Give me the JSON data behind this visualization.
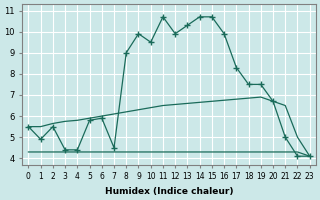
{
  "xlabel": "Humidex (Indice chaleur)",
  "bg_color": "#cce8e8",
  "line_color": "#1a6b5a",
  "grid_color": "#ffffff",
  "x_ticks": [
    0,
    1,
    2,
    3,
    4,
    5,
    6,
    7,
    8,
    9,
    10,
    11,
    12,
    13,
    14,
    15,
    16,
    17,
    18,
    19,
    20,
    21,
    22,
    23
  ],
  "y_ticks": [
    4,
    5,
    6,
    7,
    8,
    9,
    10,
    11
  ],
  "ylim": [
    3.7,
    11.3
  ],
  "xlim": [
    -0.5,
    23.5
  ],
  "curve1_x": [
    0,
    1,
    2,
    3,
    4,
    5,
    6,
    7,
    8,
    9,
    10,
    11,
    12,
    13,
    14,
    15,
    16,
    17,
    18,
    19,
    20,
    21,
    22,
    23
  ],
  "curve1_y": [
    5.5,
    4.9,
    5.5,
    4.4,
    4.4,
    5.8,
    5.9,
    4.5,
    9.0,
    9.9,
    9.5,
    10.7,
    9.9,
    10.3,
    10.7,
    10.7,
    9.9,
    8.3,
    7.5,
    7.5,
    6.7,
    5.0,
    4.1,
    4.1
  ],
  "curve2_x": [
    0,
    1,
    2,
    3,
    4,
    5,
    6,
    7,
    8,
    9,
    10,
    11,
    12,
    13,
    14,
    15,
    16,
    17,
    18,
    19,
    20,
    21,
    22,
    23
  ],
  "curve2_y": [
    4.3,
    4.3,
    4.3,
    4.3,
    4.3,
    4.3,
    4.3,
    4.3,
    4.3,
    4.3,
    4.3,
    4.3,
    4.3,
    4.3,
    4.3,
    4.3,
    4.3,
    4.3,
    4.3,
    4.3,
    4.3,
    4.3,
    4.3,
    4.1
  ],
  "curve3_x": [
    0,
    1,
    2,
    3,
    4,
    5,
    6,
    7,
    8,
    9,
    10,
    11,
    12,
    13,
    14,
    15,
    16,
    17,
    18,
    19,
    20,
    21,
    22,
    23
  ],
  "curve3_y": [
    5.5,
    5.5,
    5.65,
    5.75,
    5.8,
    5.9,
    6.0,
    6.1,
    6.2,
    6.3,
    6.4,
    6.5,
    6.55,
    6.6,
    6.65,
    6.7,
    6.75,
    6.8,
    6.85,
    6.9,
    6.7,
    6.5,
    5.0,
    4.1
  ]
}
